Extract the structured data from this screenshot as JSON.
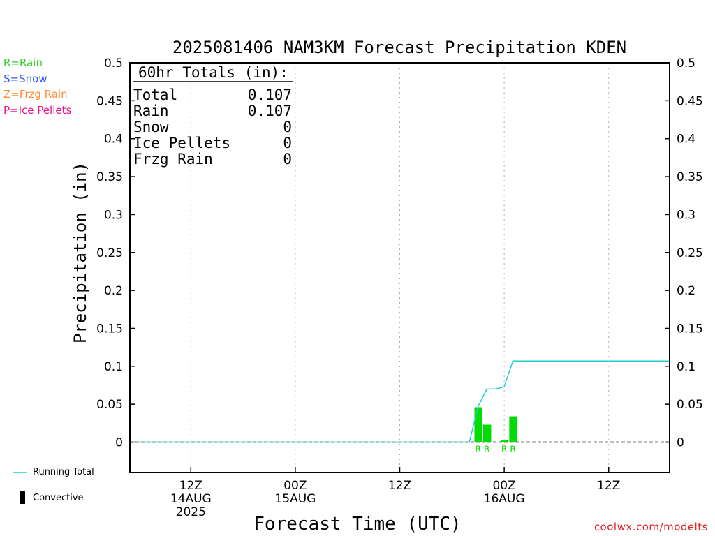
{
  "chart_data": {
    "type": "bar",
    "title": "2025081406 NAM3KM Forecast Precipitation KDEN",
    "xlabel": "Forecast Time (UTC)",
    "ylabel": "Precipitation (in)",
    "ylim": [
      -0.04,
      0.5
    ],
    "yticks": [
      "0.5",
      "0.45",
      "0.4",
      "0.35",
      "0.3",
      "0.25",
      "0.2",
      "0.15",
      "0.1",
      "0.05",
      "0"
    ],
    "xlim_hours": [
      -1,
      61
    ],
    "xticks": [
      {
        "hour": 6,
        "label": "12Z",
        "date": "14AUG",
        "year": "2025"
      },
      {
        "hour": 18,
        "label": "00Z",
        "date": "15AUG",
        "year": ""
      },
      {
        "hour": 30,
        "label": "12Z",
        "date": "",
        "year": ""
      },
      {
        "hour": 42,
        "label": "00Z",
        "date": "16AUG",
        "year": ""
      },
      {
        "hour": 54,
        "label": "12Z",
        "date": "",
        "year": ""
      }
    ],
    "grid": true,
    "bars": [
      {
        "hour": 39,
        "value": 0.046,
        "type": "R"
      },
      {
        "hour": 40,
        "value": 0.023,
        "type": "R"
      },
      {
        "hour": 42,
        "value": 0.003,
        "type": "R"
      },
      {
        "hour": 43,
        "value": 0.034,
        "type": "R"
      }
    ],
    "running_total": {
      "name": "Running Total",
      "hours": [
        0,
        38,
        39,
        40,
        41,
        42,
        43,
        61
      ],
      "values": [
        0,
        0,
        0.047,
        0.07,
        0.07,
        0.073,
        0.107,
        0.107
      ]
    },
    "totals_box": {
      "header": "60hr Totals (in):",
      "rows": [
        {
          "label": "Total",
          "value": "0.107"
        },
        {
          "label": "Rain",
          "value": "0.107"
        },
        {
          "label": "Snow",
          "value": "0"
        },
        {
          "label": "Ice Pellets",
          "value": "0"
        },
        {
          "label": "Frzg Rain",
          "value": "0"
        }
      ]
    },
    "legend": [
      {
        "text": "R=Rain",
        "color": "#33cc33"
      },
      {
        "text": "S=Snow",
        "color": "#3355ff"
      },
      {
        "text": "Z=Frzg Rain",
        "color": "#ff8c33"
      },
      {
        "text": "P=Ice Pellets",
        "color": "#ee1188"
      }
    ],
    "bottom_legend": {
      "running_total": "Running Total",
      "convective": "Convective"
    },
    "colors": {
      "rain_bar": "#00dd00",
      "running_total": "#22cccc",
      "grid": "#b0b0b0",
      "credit": "#e02020"
    }
  },
  "credit": "coolwx.com/modelts"
}
